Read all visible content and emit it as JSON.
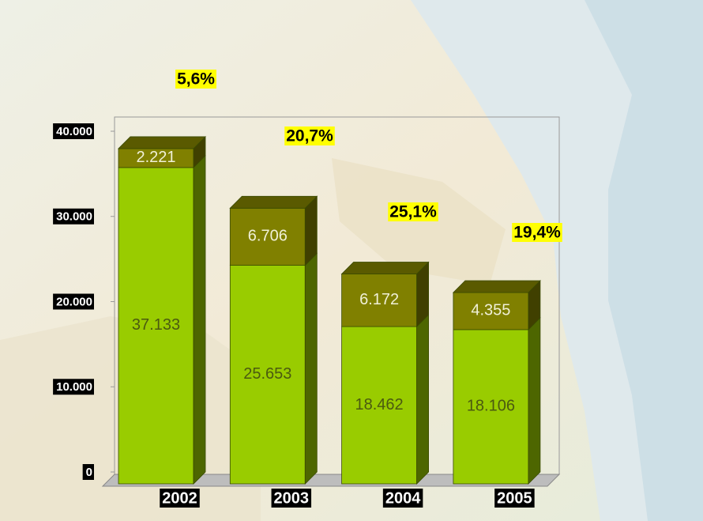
{
  "chart_data": {
    "type": "bar3d_stacked",
    "categories": [
      "2002",
      "2003",
      "2004",
      "2005"
    ],
    "series": [
      {
        "color": "#99cc00",
        "values": [
          37133,
          25653,
          18462,
          18106
        ],
        "value_labels": [
          "37.133",
          "25.653",
          "18.462",
          "18.106"
        ]
      },
      {
        "color": "#808000",
        "values": [
          2221,
          6706,
          6172,
          4355
        ],
        "value_labels": [
          "2.221",
          "6.706",
          "6.172",
          "4.355"
        ]
      }
    ],
    "annotations": [
      "5,6%",
      "20,7%",
      "25,1%",
      "19,4%"
    ],
    "ylim": [
      0,
      40000
    ],
    "yticks": [
      0,
      {
        "value": 10000,
        "label": "10.000"
      },
      {
        "value": 20000,
        "label": "20.000"
      },
      {
        "value": 30000,
        "label": "30.000"
      },
      {
        "value": 40000,
        "label": "40.000"
      }
    ]
  }
}
